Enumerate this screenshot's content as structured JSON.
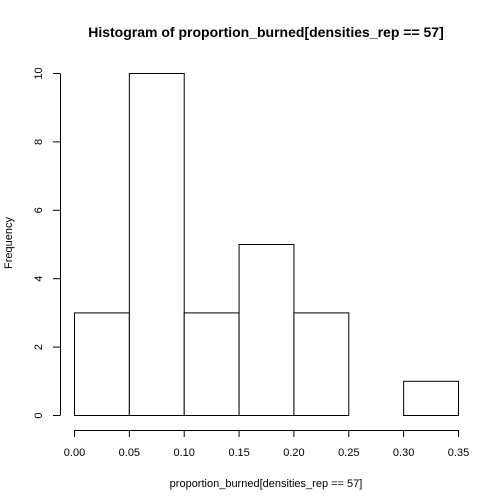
{
  "chart_data": {
    "type": "bar",
    "title": "Histogram of proportion_burned[densities_rep == 57]",
    "xlabel": "proportion_burned[densities_rep == 57]",
    "ylabel": "Frequency",
    "bins": [
      {
        "start": 0.0,
        "end": 0.05,
        "count": 3
      },
      {
        "start": 0.05,
        "end": 0.1,
        "count": 10
      },
      {
        "start": 0.1,
        "end": 0.15,
        "count": 3
      },
      {
        "start": 0.15,
        "end": 0.2,
        "count": 5
      },
      {
        "start": 0.2,
        "end": 0.25,
        "count": 3
      },
      {
        "start": 0.25,
        "end": 0.3,
        "count": 0
      },
      {
        "start": 0.3,
        "end": 0.35,
        "count": 1
      }
    ],
    "xlim": [
      0,
      0.35
    ],
    "ylim": [
      0,
      10
    ],
    "x_ticks": [
      "0.00",
      "0.05",
      "0.10",
      "0.15",
      "0.20",
      "0.25",
      "0.30",
      "0.35"
    ],
    "y_ticks": [
      "0",
      "2",
      "4",
      "6",
      "8",
      "10"
    ],
    "grid": false,
    "bar_fill": "#ffffff",
    "bar_stroke": "#000000"
  }
}
